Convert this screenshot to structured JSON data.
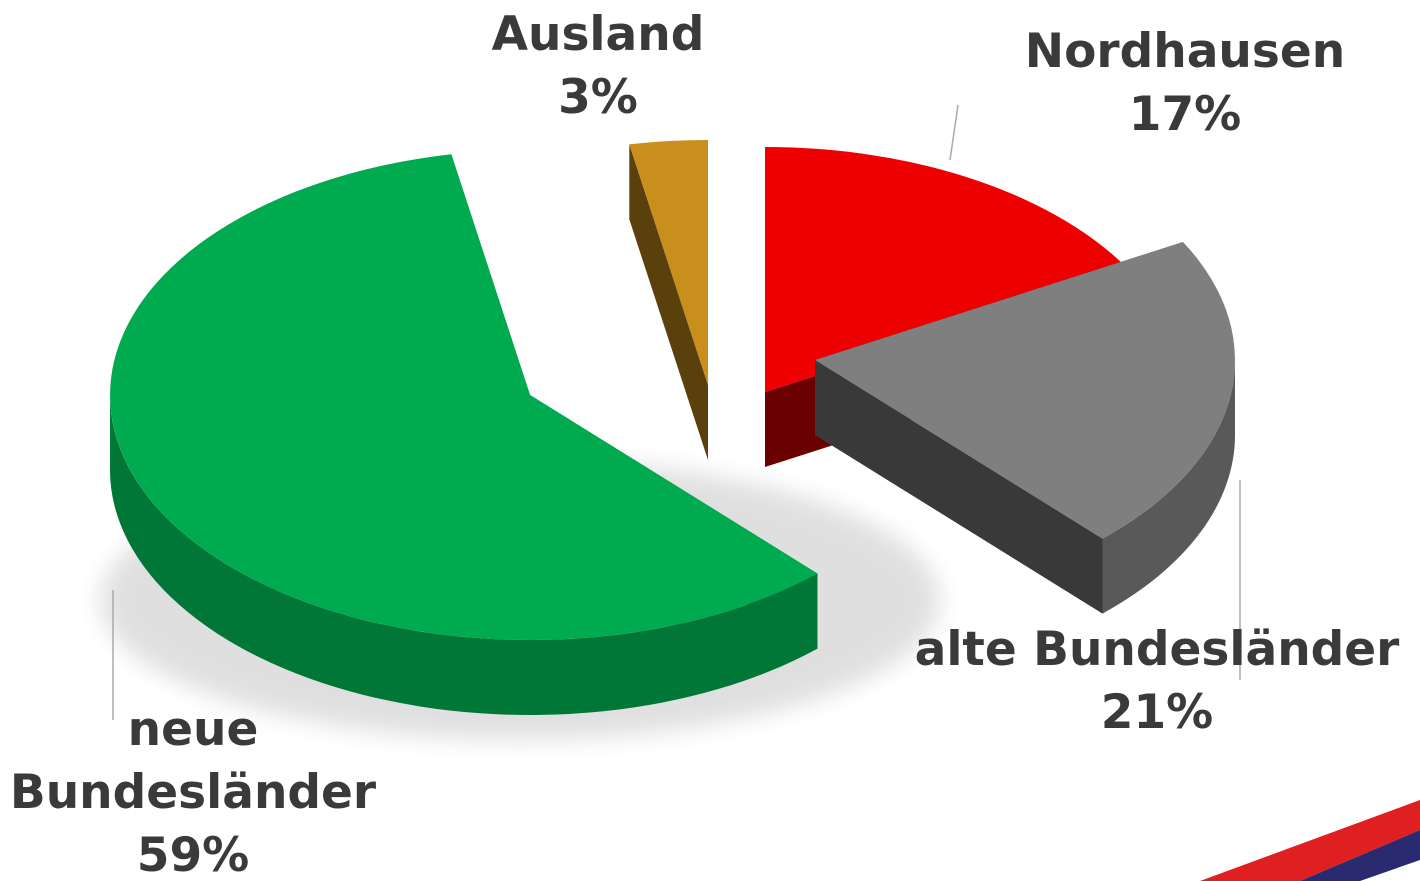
{
  "chart_data": {
    "type": "pie",
    "categories": [
      "Nordhausen",
      "alte Bundesländer",
      "neue Bundesländer",
      "Ausland"
    ],
    "values": [
      17,
      21,
      59,
      3
    ],
    "value_labels": [
      "17%",
      "21%",
      "59%",
      "3%"
    ],
    "colors": [
      "#ee0000",
      "#7f7f7f",
      "#00aa4f",
      "#c98f1c"
    ]
  }
}
